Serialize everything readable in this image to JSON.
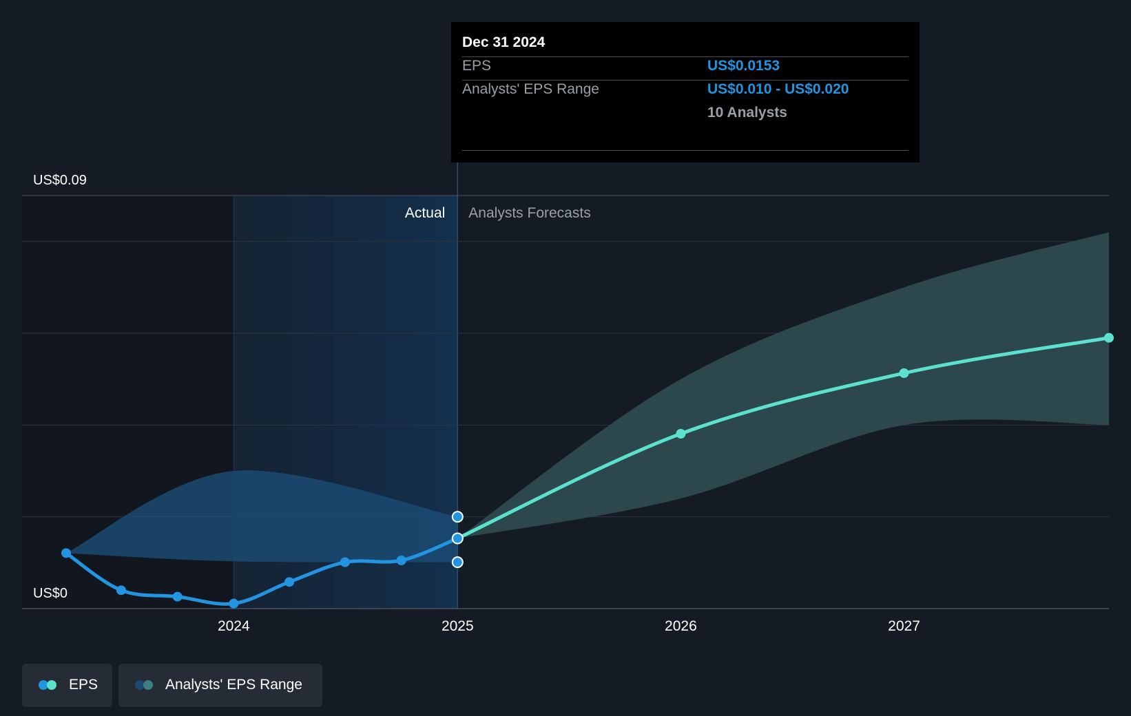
{
  "tooltip": {
    "date": "Dec 31 2024",
    "eps_label": "EPS",
    "eps_value": "US$0.0153",
    "range_label": "Analysts' EPS Range",
    "range_value": "US$0.010 - US$0.020",
    "analysts": "10 Analysts"
  },
  "legend": {
    "eps": "EPS",
    "range": "Analysts' EPS Range"
  },
  "colors": {
    "background": "#151b24",
    "actual_line": "#2394df",
    "forecast_line": "#5ce1cf",
    "actual_band": "#1b4a72",
    "forecast_band": "#2d4b4f",
    "grid": "#2e3540"
  },
  "chart_data": {
    "type": "line",
    "y_axis_labels": [
      "US$0.09",
      "US$0"
    ],
    "ylim": [
      0,
      0.09
    ],
    "xlim": [
      "2023-04-01",
      "2027-12-01"
    ],
    "x_ticks": [
      "2024",
      "2025",
      "2026",
      "2027"
    ],
    "section_labels": {
      "actual": "Actual",
      "forecast": "Analysts Forecasts"
    },
    "grid": true,
    "series": [
      {
        "name": "EPS",
        "kind": "actual",
        "points": [
          {
            "x": "2023-04-01",
            "y": 0.0121
          },
          {
            "x": "2023-06-30",
            "y": 0.004
          },
          {
            "x": "2023-09-30",
            "y": 0.0026
          },
          {
            "x": "2023-12-31",
            "y": 0.0011
          },
          {
            "x": "2024-03-31",
            "y": 0.0058
          },
          {
            "x": "2024-06-30",
            "y": 0.0101
          },
          {
            "x": "2024-09-30",
            "y": 0.0105
          },
          {
            "x": "2024-12-31",
            "y": 0.0153
          }
        ]
      },
      {
        "name": "EPS",
        "kind": "forecast",
        "points": [
          {
            "x": "2024-12-31",
            "y": 0.0153
          },
          {
            "x": "2025-12-31",
            "y": 0.0381
          },
          {
            "x": "2026-12-31",
            "y": 0.0513
          },
          {
            "x": "2027-12-01",
            "y": 0.059
          }
        ]
      }
    ],
    "actual_range": {
      "name": "Analysts' EPS Range",
      "x": [
        "2023-04-01",
        "2023-12-31",
        "2024-12-31"
      ],
      "low": [
        0.0121,
        0.0103,
        0.0101
      ],
      "high": [
        0.0121,
        0.03,
        0.02
      ]
    },
    "forecast_range": {
      "name": "Analysts' EPS Range",
      "x": [
        "2024-12-31",
        "2025-12-31",
        "2026-12-31",
        "2027-12-01"
      ],
      "low": [
        0.0153,
        0.024,
        0.04,
        0.04
      ],
      "high": [
        0.0153,
        0.05,
        0.07,
        0.082
      ]
    },
    "highlight": {
      "x": "2024-12-31",
      "eps": 0.0153,
      "low": 0.0101,
      "high": 0.02
    }
  }
}
